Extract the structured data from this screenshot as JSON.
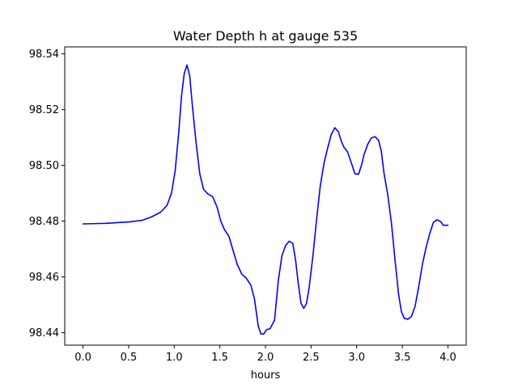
{
  "chart_data": {
    "type": "line",
    "title": "Water Depth h at gauge 535",
    "xlabel": "hours",
    "ylabel": "",
    "xlim": [
      -0.2,
      4.2
    ],
    "ylim": [
      98.4355,
      98.5425
    ],
    "xticks": [
      {
        "value": 0.0,
        "label": "0.0"
      },
      {
        "value": 0.5,
        "label": "0.5"
      },
      {
        "value": 1.0,
        "label": "1.0"
      },
      {
        "value": 1.5,
        "label": "1.5"
      },
      {
        "value": 2.0,
        "label": "2.0"
      },
      {
        "value": 2.5,
        "label": "2.5"
      },
      {
        "value": 3.0,
        "label": "3.0"
      },
      {
        "value": 3.5,
        "label": "3.5"
      },
      {
        "value": 4.0,
        "label": "4.0"
      }
    ],
    "yticks": [
      {
        "value": 98.44,
        "label": "98.44"
      },
      {
        "value": 98.46,
        "label": "98.46"
      },
      {
        "value": 98.48,
        "label": "98.48"
      },
      {
        "value": 98.5,
        "label": "98.50"
      },
      {
        "value": 98.52,
        "label": "98.52"
      },
      {
        "value": 98.54,
        "label": "98.54"
      }
    ],
    "grid": false,
    "series": [
      {
        "color": "#0000ff",
        "x": [
          0.0,
          0.25,
          0.5,
          0.65,
          0.75,
          0.85,
          0.92,
          0.97,
          1.01,
          1.05,
          1.08,
          1.11,
          1.14,
          1.17,
          1.2,
          1.24,
          1.28,
          1.32,
          1.37,
          1.42,
          1.47,
          1.51,
          1.55,
          1.6,
          1.64,
          1.69,
          1.74,
          1.79,
          1.84,
          1.88,
          1.92,
          1.95,
          1.98,
          2.01,
          2.05,
          2.1,
          2.14,
          2.18,
          2.22,
          2.26,
          2.3,
          2.33,
          2.36,
          2.39,
          2.42,
          2.45,
          2.48,
          2.52,
          2.56,
          2.6,
          2.64,
          2.68,
          2.72,
          2.76,
          2.8,
          2.83,
          2.86,
          2.9,
          2.94,
          2.98,
          3.02,
          3.05,
          3.08,
          3.12,
          3.16,
          3.2,
          3.24,
          3.27,
          3.3,
          3.34,
          3.38,
          3.42,
          3.46,
          3.49,
          3.52,
          3.56,
          3.6,
          3.64,
          3.68,
          3.72,
          3.76,
          3.8,
          3.84,
          3.88,
          3.92,
          3.95,
          3.98,
          4.0
        ],
        "y": [
          98.479,
          98.4792,
          98.4797,
          98.4803,
          98.4815,
          98.4832,
          98.4856,
          98.49,
          98.498,
          98.512,
          98.525,
          98.533,
          98.536,
          98.532,
          98.521,
          98.508,
          98.497,
          98.4915,
          98.4897,
          98.4888,
          98.485,
          98.48,
          98.477,
          98.4745,
          98.47,
          98.4645,
          98.461,
          98.4595,
          98.457,
          98.452,
          98.4425,
          98.4395,
          98.4395,
          98.441,
          98.4414,
          98.4445,
          98.4585,
          98.4675,
          98.4712,
          98.4728,
          98.472,
          98.466,
          98.4575,
          98.4505,
          98.4487,
          98.4505,
          98.4565,
          98.4675,
          98.4805,
          98.4925,
          98.5005,
          98.506,
          98.511,
          98.5135,
          98.512,
          98.5088,
          98.5065,
          98.5048,
          98.501,
          98.497,
          98.4968,
          98.4998,
          98.5038,
          98.5075,
          98.5098,
          98.5103,
          98.509,
          98.505,
          98.497,
          98.4895,
          98.4795,
          98.466,
          98.4535,
          98.4475,
          98.4452,
          98.4448,
          98.4458,
          98.4495,
          98.4565,
          98.4645,
          98.4705,
          98.4755,
          98.4795,
          98.4805,
          98.4798,
          98.4785,
          98.4785,
          98.4785
        ]
      }
    ]
  }
}
